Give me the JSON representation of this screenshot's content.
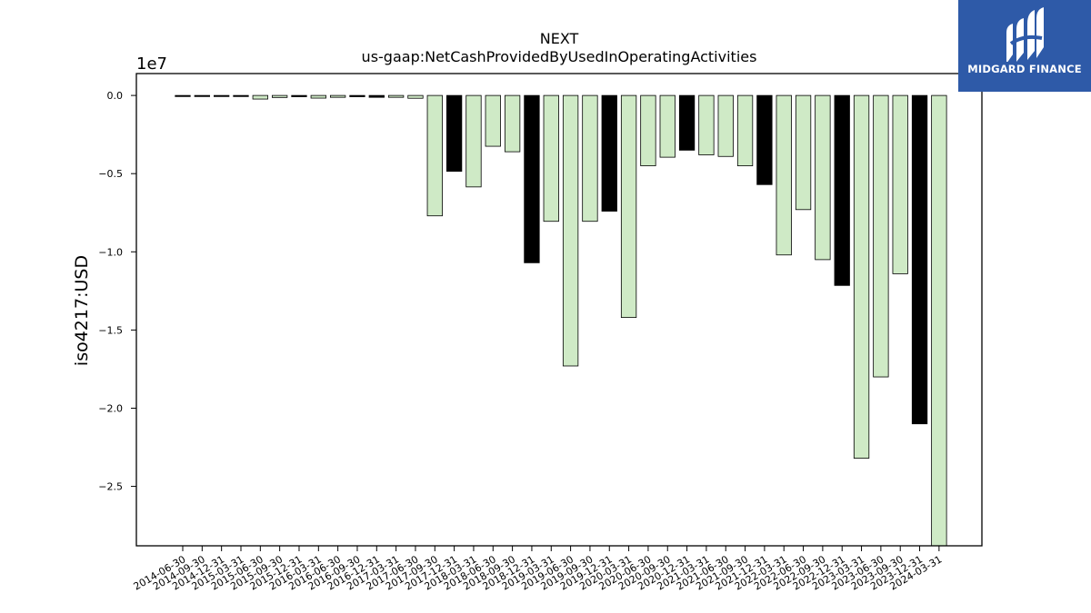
{
  "logo": {
    "text": "MIDGARD FINANCE"
  },
  "chart_data": {
    "type": "bar",
    "title": "NEXT",
    "subtitle": "us-gaap:NetCashProvidedByUsedInOperatingActivities",
    "ylabel": "iso4217:USD",
    "xlabel": "",
    "offset_text": "1e7",
    "ylim": [
      -28800000,
      1400000
    ],
    "yticks": [
      0.0,
      -0.5,
      -1.0,
      -1.5,
      -2.0,
      -2.5
    ],
    "ytick_labels": [
      "0.0",
      "−0.5",
      "−1.0",
      "−1.5",
      "−2.0",
      "−2.5"
    ],
    "grid": false,
    "colors": {
      "black": "#000000",
      "green": "#cfeac6"
    },
    "categories": [
      "2014-06-30",
      "2014-09-30",
      "2014-12-31",
      "2015-03-31",
      "2015-06-30",
      "2015-09-30",
      "2015-12-31",
      "2016-03-31",
      "2016-06-30",
      "2016-09-30",
      "2016-12-31",
      "2017-03-31",
      "2017-06-30",
      "2017-09-30",
      "2017-12-31",
      "2018-03-31",
      "2018-06-30",
      "2018-09-30",
      "2018-12-31",
      "2019-03-31",
      "2019-06-30",
      "2019-09-30",
      "2019-12-31",
      "2020-03-31",
      "2020-06-30",
      "2020-09-30",
      "2020-12-31",
      "2021-03-31",
      "2021-06-30",
      "2021-09-30",
      "2021-12-31",
      "2022-03-31",
      "2022-06-30",
      "2022-09-30",
      "2022-12-31",
      "2023-03-31",
      "2023-06-30",
      "2023-09-30",
      "2023-12-31",
      "2024-03-31"
    ],
    "values": [
      -50000,
      -20000,
      -20000,
      -60000,
      -230000,
      -130000,
      -80000,
      -170000,
      -120000,
      -80000,
      -120000,
      -120000,
      -180000,
      -7700000,
      -4850000,
      -5850000,
      -3250000,
      -3600000,
      -10700000,
      -8050000,
      -17300000,
      -8050000,
      -7400000,
      -14200000,
      -4500000,
      -3950000,
      -3500000,
      -3800000,
      -3900000,
      -4500000,
      -5700000,
      -10200000,
      -7300000,
      -10500000,
      -12150000,
      -23200000,
      -18000000,
      -11400000,
      -21000000,
      -28800000
    ],
    "bar_colors": [
      "black",
      "black",
      "black",
      "black",
      "green",
      "green",
      "black",
      "green",
      "green",
      "black",
      "black",
      "green",
      "green",
      "green",
      "black",
      "green",
      "green",
      "green",
      "black",
      "green",
      "green",
      "green",
      "black",
      "green",
      "green",
      "green",
      "black",
      "green",
      "green",
      "green",
      "black",
      "green",
      "green",
      "green",
      "black",
      "green",
      "green",
      "green",
      "black",
      "green"
    ]
  }
}
